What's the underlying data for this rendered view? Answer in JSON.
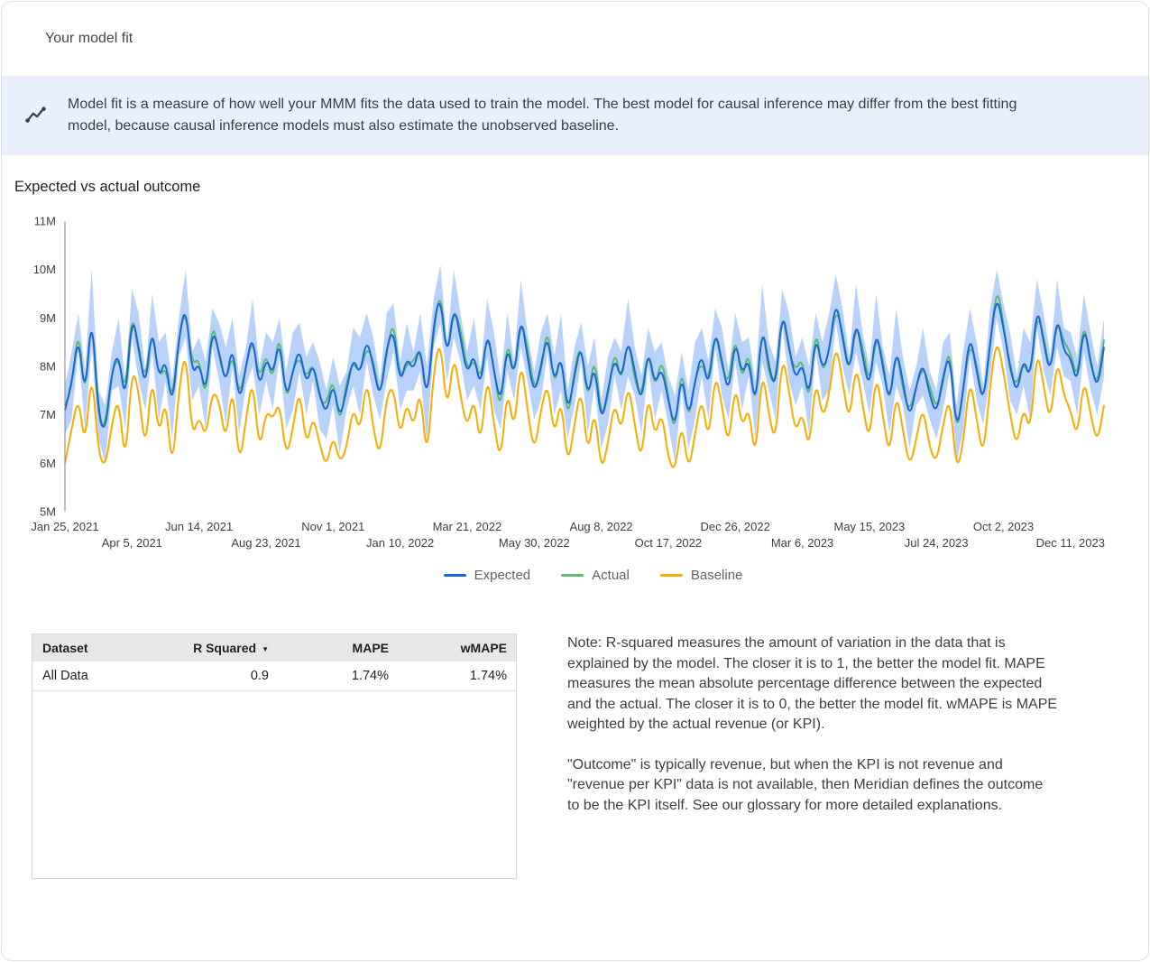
{
  "header": {
    "title": "Your model fit"
  },
  "banner": {
    "text": "Model fit is a measure of how well your MMM fits the data used to train the model. The best model for causal inference may differ from the best fitting model, because causal inference models must also estimate the unobserved baseline."
  },
  "section": {
    "title": "Expected vs actual outcome"
  },
  "chart_data": {
    "type": "line",
    "title": "Expected vs actual outcome",
    "unit": "M",
    "ylim": [
      5,
      11
    ],
    "grid": false,
    "legend_position": "bottom",
    "y_ticks": [
      {
        "value": 5,
        "label": "5M"
      },
      {
        "value": 6,
        "label": "6M"
      },
      {
        "value": 7,
        "label": "7M"
      },
      {
        "value": 8,
        "label": "8M"
      },
      {
        "value": 9,
        "label": "9M"
      },
      {
        "value": 10,
        "label": "10M"
      },
      {
        "value": 11,
        "label": "11M"
      }
    ],
    "x_ticks": [
      {
        "index": 0,
        "label": "Jan 25, 2021",
        "row": 1
      },
      {
        "index": 10,
        "label": "Apr 5, 2021",
        "row": 2
      },
      {
        "index": 20,
        "label": "Jun 14, 2021",
        "row": 1
      },
      {
        "index": 30,
        "label": "Aug 23, 2021",
        "row": 2
      },
      {
        "index": 40,
        "label": "Nov 1, 2021",
        "row": 1
      },
      {
        "index": 50,
        "label": "Jan 10, 2022",
        "row": 2
      },
      {
        "index": 60,
        "label": "Mar 21, 2022",
        "row": 1
      },
      {
        "index": 70,
        "label": "May 30, 2022",
        "row": 2
      },
      {
        "index": 80,
        "label": "Aug 8, 2022",
        "row": 1
      },
      {
        "index": 90,
        "label": "Oct 17, 2022",
        "row": 2
      },
      {
        "index": 100,
        "label": "Dec 26, 2022",
        "row": 1
      },
      {
        "index": 110,
        "label": "Mar 6, 2023",
        "row": 2
      },
      {
        "index": 120,
        "label": "May 15, 2023",
        "row": 1
      },
      {
        "index": 130,
        "label": "Jul 24, 2023",
        "row": 2
      },
      {
        "index": 140,
        "label": "Oct 2, 2023",
        "row": 1
      },
      {
        "index": 150,
        "label": "Dec 11, 2023",
        "row": 2
      }
    ],
    "series": [
      {
        "name": "Expected",
        "color": "#1967d2",
        "values": [
          7.1,
          7.6,
          8.7,
          7.3,
          9.2,
          7.0,
          6.6,
          7.9,
          8.3,
          7.2,
          9.1,
          8.4,
          7.5,
          8.9,
          7.7,
          8.2,
          7.1,
          8.6,
          9.3,
          7.8,
          8.1,
          7.4,
          8.8,
          8.3,
          7.6,
          8.5,
          7.2,
          8.0,
          8.7,
          7.5,
          8.2,
          7.8,
          8.6,
          7.3,
          7.9,
          8.4,
          7.6,
          8.1,
          7.4,
          7.0,
          7.7,
          6.9,
          7.5,
          8.2,
          7.8,
          8.6,
          8.0,
          7.3,
          8.4,
          8.8,
          7.6,
          8.2,
          7.9,
          8.5,
          7.2,
          8.9,
          9.5,
          8.1,
          9.3,
          8.6,
          7.8,
          8.3,
          7.5,
          8.8,
          7.9,
          7.2,
          8.5,
          7.7,
          9.1,
          8.2,
          7.4,
          8.0,
          8.7,
          7.6,
          8.3,
          7.0,
          7.8,
          8.5,
          7.3,
          8.1,
          6.8,
          7.5,
          8.2,
          7.7,
          8.6,
          7.9,
          7.2,
          8.4,
          7.6,
          8.0,
          7.3,
          6.7,
          7.9,
          6.9,
          7.7,
          8.3,
          7.5,
          8.8,
          8.1,
          7.4,
          8.6,
          7.8,
          8.2,
          7.1,
          8.9,
          8.0,
          7.5,
          9.2,
          8.4,
          7.7,
          8.1,
          7.3,
          8.7,
          7.9,
          8.3,
          9.4,
          8.6,
          7.8,
          9.0,
          8.2,
          7.5,
          8.8,
          8.0,
          7.2,
          8.4,
          7.7,
          6.9,
          7.6,
          8.1,
          7.4,
          7.0,
          7.8,
          8.3,
          6.6,
          7.5,
          8.7,
          7.9,
          7.2,
          8.5,
          9.5,
          8.8,
          8.0,
          7.4,
          8.2,
          7.7,
          9.3,
          8.5,
          7.8,
          9.1,
          8.3,
          8.2,
          7.6,
          8.9,
          8.1,
          7.5,
          8.4
        ]
      },
      {
        "name": "Actual",
        "color": "#5bb974",
        "values": [
          7.2,
          7.45,
          8.9,
          7.2,
          9.25,
          6.8,
          6.75,
          7.9,
          8.2,
          7.4,
          9.2,
          8.25,
          7.7,
          8.8,
          7.75,
          8.0,
          7.25,
          8.6,
          9.2,
          8.0,
          8.2,
          7.25,
          9.0,
          8.2,
          7.65,
          8.3,
          7.35,
          8.0,
          8.6,
          7.7,
          8.3,
          7.65,
          8.8,
          7.2,
          7.95,
          8.2,
          7.75,
          8.1,
          7.3,
          7.2,
          7.8,
          6.75,
          7.7,
          8.1,
          7.85,
          8.4,
          8.15,
          7.3,
          8.3,
          9.0,
          7.7,
          8.05,
          8.1,
          8.4,
          7.25,
          8.7,
          9.65,
          8.1,
          9.2,
          8.8,
          7.9,
          8.15,
          7.7,
          8.7,
          7.95,
          7.0,
          8.65,
          7.7,
          9.0,
          8.4,
          7.5,
          7.85,
          8.9,
          7.5,
          8.35,
          6.8,
          7.95,
          8.5,
          7.2,
          8.3,
          6.9,
          7.35,
          8.4,
          7.6,
          8.65,
          7.7,
          7.35,
          8.4,
          7.5,
          8.2,
          7.4,
          6.55,
          8.1,
          6.8,
          7.75,
          8.1,
          7.65,
          8.8,
          8.0,
          7.6,
          8.7,
          7.65,
          8.4,
          7.0,
          8.95,
          7.8,
          7.65,
          9.2,
          8.3,
          7.9,
          8.2,
          7.15,
          8.9,
          7.8,
          8.35,
          9.2,
          8.75,
          7.8,
          8.9,
          8.4,
          7.6,
          8.65,
          8.2,
          7.1,
          8.45,
          7.5,
          7.05,
          7.6,
          8.0,
          7.6,
          7.1,
          7.65,
          8.5,
          6.5,
          7.55,
          8.5,
          8.05,
          7.2,
          8.4,
          9.7,
          8.9,
          7.85,
          7.6,
          8.1,
          7.75,
          9.1,
          8.65,
          7.8,
          9.0,
          8.5,
          8.3,
          7.7,
          9.0,
          8.0,
          7.6,
          8.55
        ]
      },
      {
        "name": "Baseline",
        "color": "#f9ab00",
        "values": [
          6.0,
          6.7,
          7.4,
          6.3,
          8.0,
          6.2,
          5.9,
          6.8,
          7.4,
          5.9,
          8.0,
          7.5,
          6.2,
          7.9,
          6.5,
          7.4,
          5.8,
          7.5,
          8.4,
          6.5,
          7.0,
          6.5,
          7.5,
          7.3,
          6.4,
          7.7,
          5.9,
          6.9,
          7.8,
          6.2,
          7.1,
          6.9,
          7.3,
          6.1,
          6.7,
          7.6,
          6.3,
          7.0,
          6.4,
          5.9,
          6.6,
          6.0,
          6.3,
          7.2,
          6.6,
          7.8,
          6.7,
          6.1,
          7.4,
          7.6,
          6.5,
          7.3,
          6.7,
          7.6,
          6.0,
          7.9,
          8.6,
          7.0,
          8.3,
          7.4,
          6.7,
          7.4,
          6.3,
          7.9,
          6.8,
          6.0,
          7.6,
          6.6,
          8.2,
          7.1,
          6.2,
          7.1,
          7.7,
          6.5,
          7.4,
          5.9,
          6.8,
          7.6,
          6.1,
          7.2,
          5.8,
          6.4,
          7.3,
          6.6,
          7.7,
          6.8,
          6.0,
          7.5,
          6.5,
          7.1,
          6.1,
          5.8,
          6.9,
          5.8,
          6.6,
          7.4,
          6.4,
          7.9,
          7.2,
          6.3,
          7.7,
          6.7,
          7.2,
          6.0,
          8.0,
          7.0,
          6.4,
          8.3,
          7.5,
          6.6,
          7.1,
          6.2,
          7.8,
          6.9,
          7.4,
          8.5,
          7.7,
          6.8,
          8.1,
          7.2,
          6.4,
          7.9,
          7.0,
          6.1,
          7.5,
          6.7,
          5.9,
          6.5,
          7.2,
          6.3,
          6.0,
          6.8,
          7.4,
          5.8,
          6.4,
          7.8,
          6.9,
          6.1,
          7.6,
          8.6,
          7.9,
          7.0,
          6.3,
          7.2,
          6.6,
          8.4,
          7.6,
          6.8,
          8.2,
          7.4,
          7.1,
          6.5,
          7.8,
          7.0,
          6.4,
          7.2
        ]
      }
    ],
    "band": {
      "name": "Expected credible interval",
      "color": "#a8c7fa",
      "opacity": 0.8,
      "upper": [
        7.6,
        8.3,
        9.1,
        7.9,
        10.0,
        7.5,
        7.2,
        8.3,
        9.0,
        7.7,
        9.6,
        9.1,
        7.9,
        9.5,
        8.5,
        8.7,
        7.7,
        9.0,
        10.0,
        8.3,
        8.6,
        8.1,
        9.2,
        8.9,
        8.4,
        9.0,
        7.8,
        8.4,
        9.4,
        8.0,
        8.7,
        8.5,
        9.0,
        7.9,
        8.7,
        8.9,
        8.2,
        8.5,
        8.1,
        7.5,
        8.2,
        7.6,
        7.9,
        8.8,
        8.6,
        9.1,
        8.6,
        7.7,
        9.1,
        9.3,
        8.1,
        8.9,
        8.3,
        9.1,
        8.0,
        9.4,
        10.1,
        8.5,
        10.0,
        9.1,
        8.3,
        9.0,
        7.9,
        9.4,
        8.7,
        7.7,
        9.1,
        8.1,
        9.8,
        8.7,
        7.9,
        8.7,
        9.1,
        8.2,
        9.1,
        7.5,
        8.4,
        8.9,
        8.0,
        8.6,
        7.3,
        8.2,
        8.6,
        8.3,
        9.4,
        8.4,
        7.8,
        8.8,
        8.3,
        8.5,
        7.8,
        7.4,
        8.3,
        7.5,
        8.5,
        8.8,
        8.1,
        9.2,
        8.8,
        7.9,
        9.1,
        8.5,
        8.6,
        7.7,
        9.7,
        8.5,
        8.1,
        9.6,
        9.1,
        8.2,
        8.6,
        8.0,
        9.1,
        8.5,
        9.1,
        9.9,
        9.2,
        8.2,
        9.7,
        8.7,
        8.0,
        9.5,
        8.4,
        7.8,
        9.2,
        8.2,
        7.5,
        8.0,
        8.8,
        7.9,
        7.5,
        8.5,
        8.7,
        7.2,
        8.3,
        9.2,
        8.5,
        7.6,
        9.2,
        10.0,
        9.3,
        8.7,
        7.8,
        8.8,
        8.5,
        9.8,
        9.1,
        8.2,
        9.8,
        8.8,
        8.7,
        8.2,
        9.5,
        8.7,
        8.0,
        9.0
      ],
      "lower": [
        6.6,
        6.9,
        8.3,
        6.7,
        8.4,
        6.5,
        6.0,
        7.5,
        7.6,
        6.7,
        8.6,
        7.7,
        7.1,
        8.3,
        6.9,
        7.7,
        6.5,
        8.2,
        8.6,
        7.3,
        7.6,
        6.7,
        8.4,
        7.7,
        6.8,
        8.0,
        6.6,
        7.6,
        8.0,
        7.0,
        7.7,
        7.1,
        8.2,
        6.7,
        7.1,
        7.9,
        7.0,
        7.7,
        6.7,
        6.5,
        7.2,
        6.2,
        7.1,
        7.6,
        7.0,
        8.1,
        7.4,
        6.9,
        7.7,
        8.3,
        7.1,
        7.5,
        7.5,
        7.9,
        6.4,
        8.4,
        8.9,
        7.7,
        8.6,
        8.1,
        7.3,
        7.6,
        7.1,
        8.2,
        7.1,
        6.7,
        7.9,
        7.3,
        8.4,
        7.7,
        6.9,
        7.3,
        8.3,
        7.0,
        7.5,
        6.5,
        7.2,
        8.1,
        6.6,
        7.6,
        6.3,
        6.8,
        7.8,
        7.1,
        7.8,
        7.4,
        6.6,
        8.0,
        6.9,
        7.5,
        6.8,
        6.0,
        7.5,
        6.3,
        6.9,
        7.8,
        6.9,
        8.4,
        7.4,
        6.9,
        8.1,
        7.1,
        7.8,
        6.5,
        8.1,
        7.5,
        6.9,
        8.8,
        7.7,
        7.2,
        7.6,
        6.6,
        8.3,
        7.3,
        7.5,
        8.9,
        8.0,
        7.4,
        8.3,
        7.7,
        7.0,
        8.1,
        7.6,
        6.6,
        7.6,
        7.2,
        6.3,
        7.2,
        7.4,
        6.9,
        6.5,
        7.1,
        7.9,
        6.0,
        6.7,
        8.2,
        7.3,
        6.8,
        7.8,
        9.0,
        8.3,
        7.3,
        7.0,
        7.6,
        6.9,
        8.8,
        7.9,
        7.4,
        8.4,
        7.8,
        7.7,
        7.0,
        8.3,
        7.5,
        7.0,
        7.8
      ]
    },
    "legend": [
      "Expected",
      "Actual",
      "Baseline"
    ]
  },
  "table": {
    "columns": [
      "Dataset",
      "R Squared",
      "MAPE",
      "wMAPE"
    ],
    "sort_icon": "▼",
    "rows": [
      [
        "All Data",
        "0.9",
        "1.74%",
        "1.74%"
      ]
    ]
  },
  "note": {
    "paragraph1": "Note: R-squared measures the amount of variation in the data that is explained by the model. The closer it is to 1, the better the model fit. MAPE measures the mean absolute percentage difference between the expected and the actual. The closer it is to 0, the better the model fit. wMAPE is MAPE weighted by the actual revenue (or KPI).",
    "paragraph2": "\"Outcome\" is typically revenue, but when the KPI is not revenue and \"revenue per KPI\" data is not available, then Meridian defines the outcome to be the KPI itself. See our glossary for more detailed explanations."
  },
  "colors": {
    "banner_background": "#e8f0fe",
    "expected": "#1967d2",
    "actual": "#5bb974",
    "baseline": "#f9ab00",
    "credible_interval": "#a8c7fa",
    "table_header_background": "#e7e7e7"
  }
}
